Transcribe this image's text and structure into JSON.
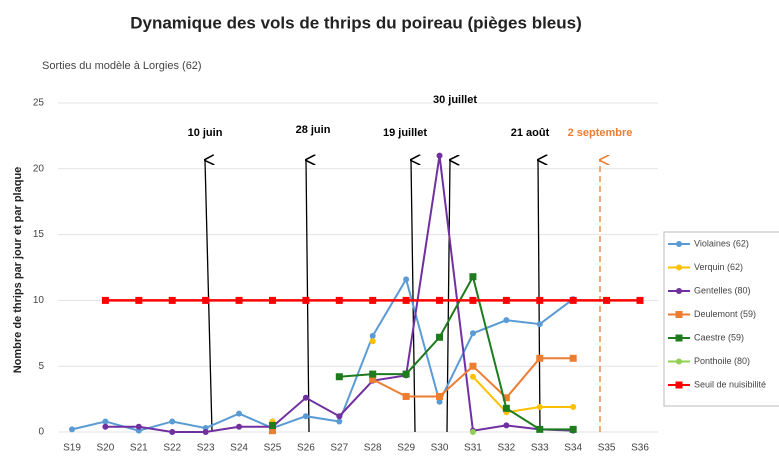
{
  "chart_data": {
    "type": "line",
    "title": "Dynamique des vols de thrips du poireau (pièges bleus)",
    "subtitle": "Sorties du modèle à Lorgies (62)",
    "y_label": "Nombre de thrips par jour et par plaque",
    "categories": [
      "S19",
      "S20",
      "S21",
      "S22",
      "S23",
      "S24",
      "S25",
      "S26",
      "S27",
      "S28",
      "S29",
      "S30",
      "S31",
      "S32",
      "S33",
      "S34",
      "S35",
      "S36"
    ],
    "ylim": [
      0,
      25
    ],
    "yticks": [
      0,
      5,
      10,
      15,
      20,
      25
    ],
    "grid": true,
    "legend": "right",
    "series": [
      {
        "name": "Violaines (62)",
        "color": "#5b9bd5",
        "marker": "circle",
        "values": [
          0.2,
          0.8,
          0.1,
          0.8,
          0.3,
          1.4,
          0.3,
          1.2,
          0.8,
          7.3,
          11.6,
          2.3,
          7.5,
          8.5,
          8.2,
          10.1,
          null,
          null
        ]
      },
      {
        "name": "Verquin (62)",
        "color": "#ffc000",
        "marker": "circle",
        "values": [
          null,
          null,
          null,
          null,
          null,
          null,
          0.8,
          null,
          null,
          6.9,
          null,
          null,
          4.2,
          1.5,
          1.9,
          1.9,
          null,
          null
        ]
      },
      {
        "name": "Gentelles (80)",
        "color": "#7030a0",
        "marker": "circle",
        "values": [
          null,
          0.4,
          0.4,
          0,
          0,
          0.4,
          0.4,
          2.6,
          1.2,
          3.9,
          4.3,
          21,
          0.1,
          0.5,
          0.2,
          0.1,
          null,
          null
        ]
      },
      {
        "name": "Deulemont (59)",
        "color": "#ed7d31",
        "marker": "square",
        "values": [
          null,
          null,
          null,
          null,
          null,
          null,
          0.1,
          null,
          null,
          4,
          2.7,
          2.7,
          5,
          2.6,
          5.6,
          5.6,
          null,
          null
        ]
      },
      {
        "name": "Caestre (59)",
        "color": "#1e7b1e",
        "marker": "square",
        "values": [
          null,
          null,
          null,
          null,
          null,
          null,
          0.5,
          null,
          4.2,
          4.4,
          4.4,
          7.2,
          11.8,
          1.8,
          0.2,
          0.2,
          null,
          null
        ]
      },
      {
        "name": "Ponthoile (80)",
        "color": "#92d050",
        "marker": "circle",
        "values": [
          null,
          null,
          null,
          null,
          null,
          null,
          null,
          null,
          null,
          null,
          null,
          null,
          0,
          null,
          null,
          null,
          null,
          null
        ]
      },
      {
        "name": "Seuil de nuisibilité",
        "color": "#ff0000",
        "marker": "square",
        "values": [
          null,
          10,
          10,
          10,
          10,
          10,
          10,
          10,
          10,
          10,
          10,
          10,
          10,
          10,
          10,
          10,
          10,
          10
        ]
      }
    ],
    "annotations": [
      {
        "text": "10 juin",
        "color": "#000000"
      },
      {
        "text": "28 juin",
        "color": "#000000"
      },
      {
        "text": "19 juillet",
        "color": "#000000"
      },
      {
        "text": "30 juillet",
        "color": "#000000"
      },
      {
        "text": "21 août",
        "color": "#000000"
      },
      {
        "text": "2 septembre",
        "color": "#ed7d31"
      }
    ]
  }
}
